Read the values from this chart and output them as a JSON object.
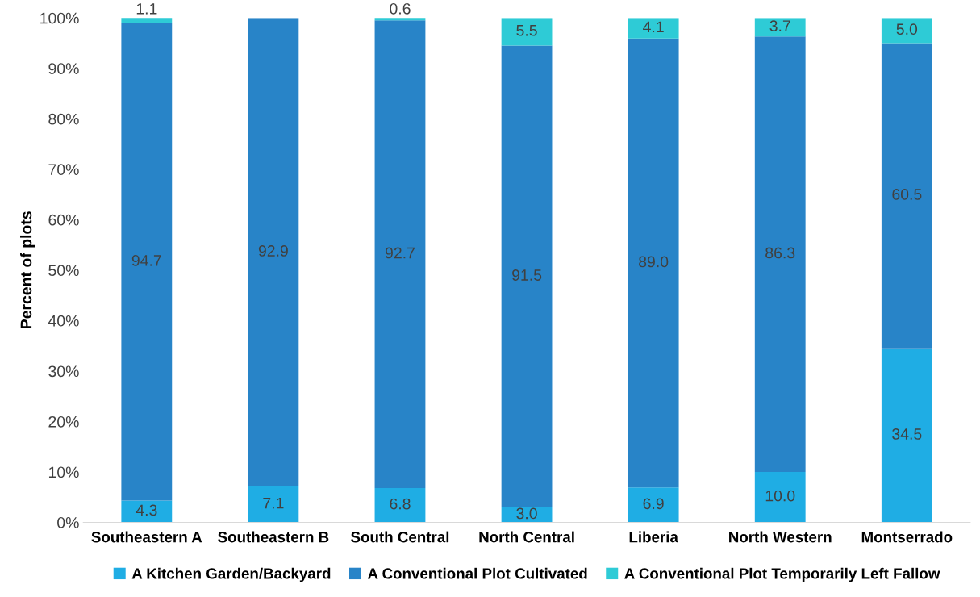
{
  "chart_data": {
    "type": "bar",
    "stacked": true,
    "ylabel": "Percent of plots",
    "categories": [
      "Southeastern A",
      "Southeastern B",
      "South Central",
      "North Central",
      "Liberia",
      "North Western",
      "Montserrado"
    ],
    "series": [
      {
        "name": "A Kitchen Garden/Backyard",
        "color": "#1fade4",
        "values": [
          4.3,
          7.1,
          6.8,
          3.0,
          6.9,
          10.0,
          34.5
        ],
        "value_labels": [
          "4.3",
          "7.1",
          "6.8",
          "3.0",
          "6.9",
          "10.0",
          "34.5"
        ]
      },
      {
        "name": "A Conventional Plot Cultivated",
        "color": "#2884c8",
        "values": [
          94.7,
          92.9,
          92.7,
          91.5,
          89.0,
          86.3,
          60.5
        ],
        "value_labels": [
          "94.7",
          "92.9",
          "92.7",
          "91.5",
          "89.0",
          "86.3",
          "60.5"
        ]
      },
      {
        "name": "A Conventional Plot Temporarily Left Fallow",
        "color": "#2ecbd6",
        "values": [
          1.1,
          0,
          0.6,
          5.5,
          4.1,
          3.7,
          5.0
        ],
        "value_labels": [
          "1.1",
          null,
          "0.6",
          "5.5",
          "4.1",
          "3.7",
          "5.0"
        ]
      }
    ],
    "ylim": [
      0,
      100
    ],
    "yticks": [
      {
        "value": 0,
        "label": "0%"
      },
      {
        "value": 10,
        "label": "10%"
      },
      {
        "value": 20,
        "label": "20%"
      },
      {
        "value": 30,
        "label": "30%"
      },
      {
        "value": 40,
        "label": "40%"
      },
      {
        "value": 50,
        "label": "50%"
      },
      {
        "value": 60,
        "label": "60%"
      },
      {
        "value": 70,
        "label": "70%"
      },
      {
        "value": 80,
        "label": "80%"
      },
      {
        "value": 90,
        "label": "90%"
      },
      {
        "value": 100,
        "label": "100%"
      }
    ],
    "grid": false,
    "legend": "bottom"
  }
}
